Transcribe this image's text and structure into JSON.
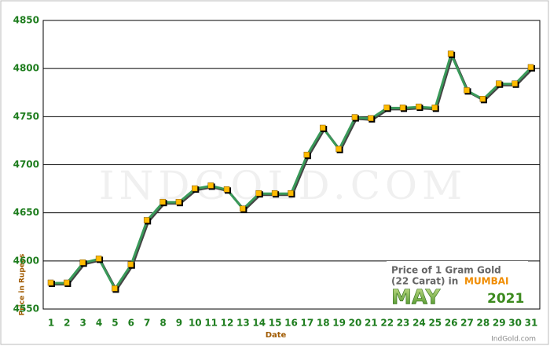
{
  "chart_data": {
    "type": "line",
    "xlabel": "Date",
    "ylabel": "Price in Rupees",
    "categories": [
      "1",
      "2",
      "3",
      "4",
      "5",
      "6",
      "7",
      "8",
      "9",
      "10",
      "11",
      "12",
      "13",
      "14",
      "15",
      "16",
      "17",
      "18",
      "19",
      "20",
      "21",
      "22",
      "23",
      "24",
      "25",
      "26",
      "27",
      "28",
      "29",
      "30",
      "31"
    ],
    "values": [
      4577,
      4577,
      4598,
      4602,
      4571,
      4596,
      4642,
      4661,
      4661,
      4675,
      4678,
      4674,
      4654,
      4670,
      4670,
      4670,
      4710,
      4738,
      4716,
      4749,
      4748,
      4759,
      4759,
      4760,
      4759,
      4815,
      4777,
      4768,
      4784,
      4784,
      4801
    ],
    "color": "#3a9a5a",
    "marker_color": "#ffbb00",
    "ylim": [
      4550,
      4850
    ],
    "yticks": [
      4550,
      4600,
      4650,
      4700,
      4750,
      4800,
      4850
    ],
    "grid": true,
    "annotation": {
      "line1": "Price of 1 Gram Gold",
      "line2": "(22 Carat) in",
      "city": "MUMBAI",
      "month": "MAY",
      "year": "2021"
    },
    "watermark": "IndGold.com",
    "credit": "IndGold.com"
  }
}
